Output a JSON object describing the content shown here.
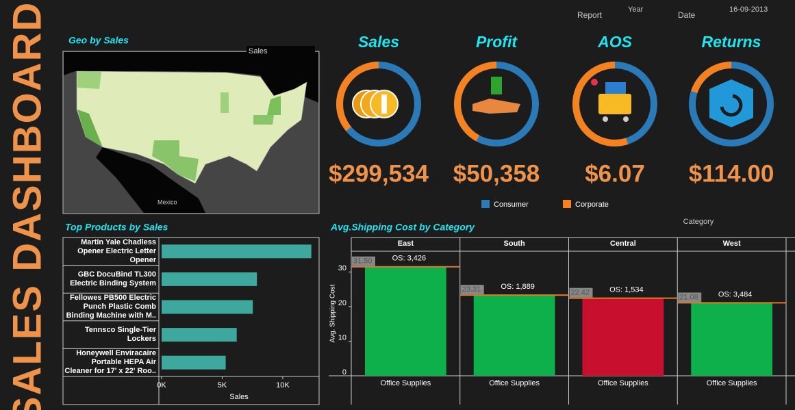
{
  "header": {
    "title": "SALES DASHBOARD",
    "report": "Report",
    "year": "Year",
    "date_label": "Date",
    "date": "16-09-2013"
  },
  "map": {
    "title": "Geo by Sales",
    "legend_title": "Sales",
    "label": "Mexico"
  },
  "kpis": [
    {
      "title": "Sales",
      "value": "$299,534",
      "corporate_share": 36
    },
    {
      "title": "Profit",
      "value": "$50,358",
      "corporate_share": 42
    },
    {
      "title": "AOS",
      "value": "$6.07",
      "corporate_share": 55
    },
    {
      "title": "Returns",
      "value": "$114.00",
      "corporate_share": 20
    }
  ],
  "kpi_legend": [
    {
      "name": "Consumer",
      "color": "#2a7ab8"
    },
    {
      "name": "Corporate",
      "color": "#f58220"
    }
  ],
  "chart_data": [
    {
      "type": "hbar",
      "title": "Top Products by Sales",
      "x_label": "Sales",
      "color": "#3ea89f",
      "categories": [
        "Martin Yale Chadless Opener Electric Letter Opener",
        "GBC DocuBind TL300 Electric Binding System",
        "Fellowes PB500 Electric Punch Plastic Comb Binding Machine with M..",
        "Tennsco Single-Tier Lockers",
        "Honeywell Enviracaire Portable HEPA Air Cleaner for 17' x 22' Roo.."
      ],
      "values": [
        12360,
        7870,
        7530,
        6200,
        5290
      ],
      "xlim": [
        0,
        13000
      ],
      "xticks": [
        {
          "value": 0,
          "label": "0K"
        },
        {
          "value": 5000,
          "label": "5K"
        },
        {
          "value": 10000,
          "label": "10K"
        }
      ]
    },
    {
      "type": "panel_bar",
      "title": "Avg.Shipping Cost  by Category",
      "header_label": "Category",
      "y_label": "Avg. Shipping Cost",
      "category_label": "Office Supplies",
      "ref_color": "#e07b2a",
      "categories": [
        "East",
        "South",
        "Central",
        "West"
      ],
      "values": [
        31.5,
        23.31,
        22.42,
        21.08
      ],
      "value_labels": [
        "31.50",
        "23.31",
        "22.42",
        "21.08"
      ],
      "annotations": [
        "OS: 3,426",
        "OS: 1,889",
        "OS: 1,534",
        "OS: 3,484"
      ],
      "colors": [
        "#0db04b",
        "#0db04b",
        "#c8102e",
        "#0db04b"
      ],
      "ylim": [
        0,
        36
      ],
      "yticks": [
        0,
        10,
        20,
        30
      ]
    }
  ]
}
